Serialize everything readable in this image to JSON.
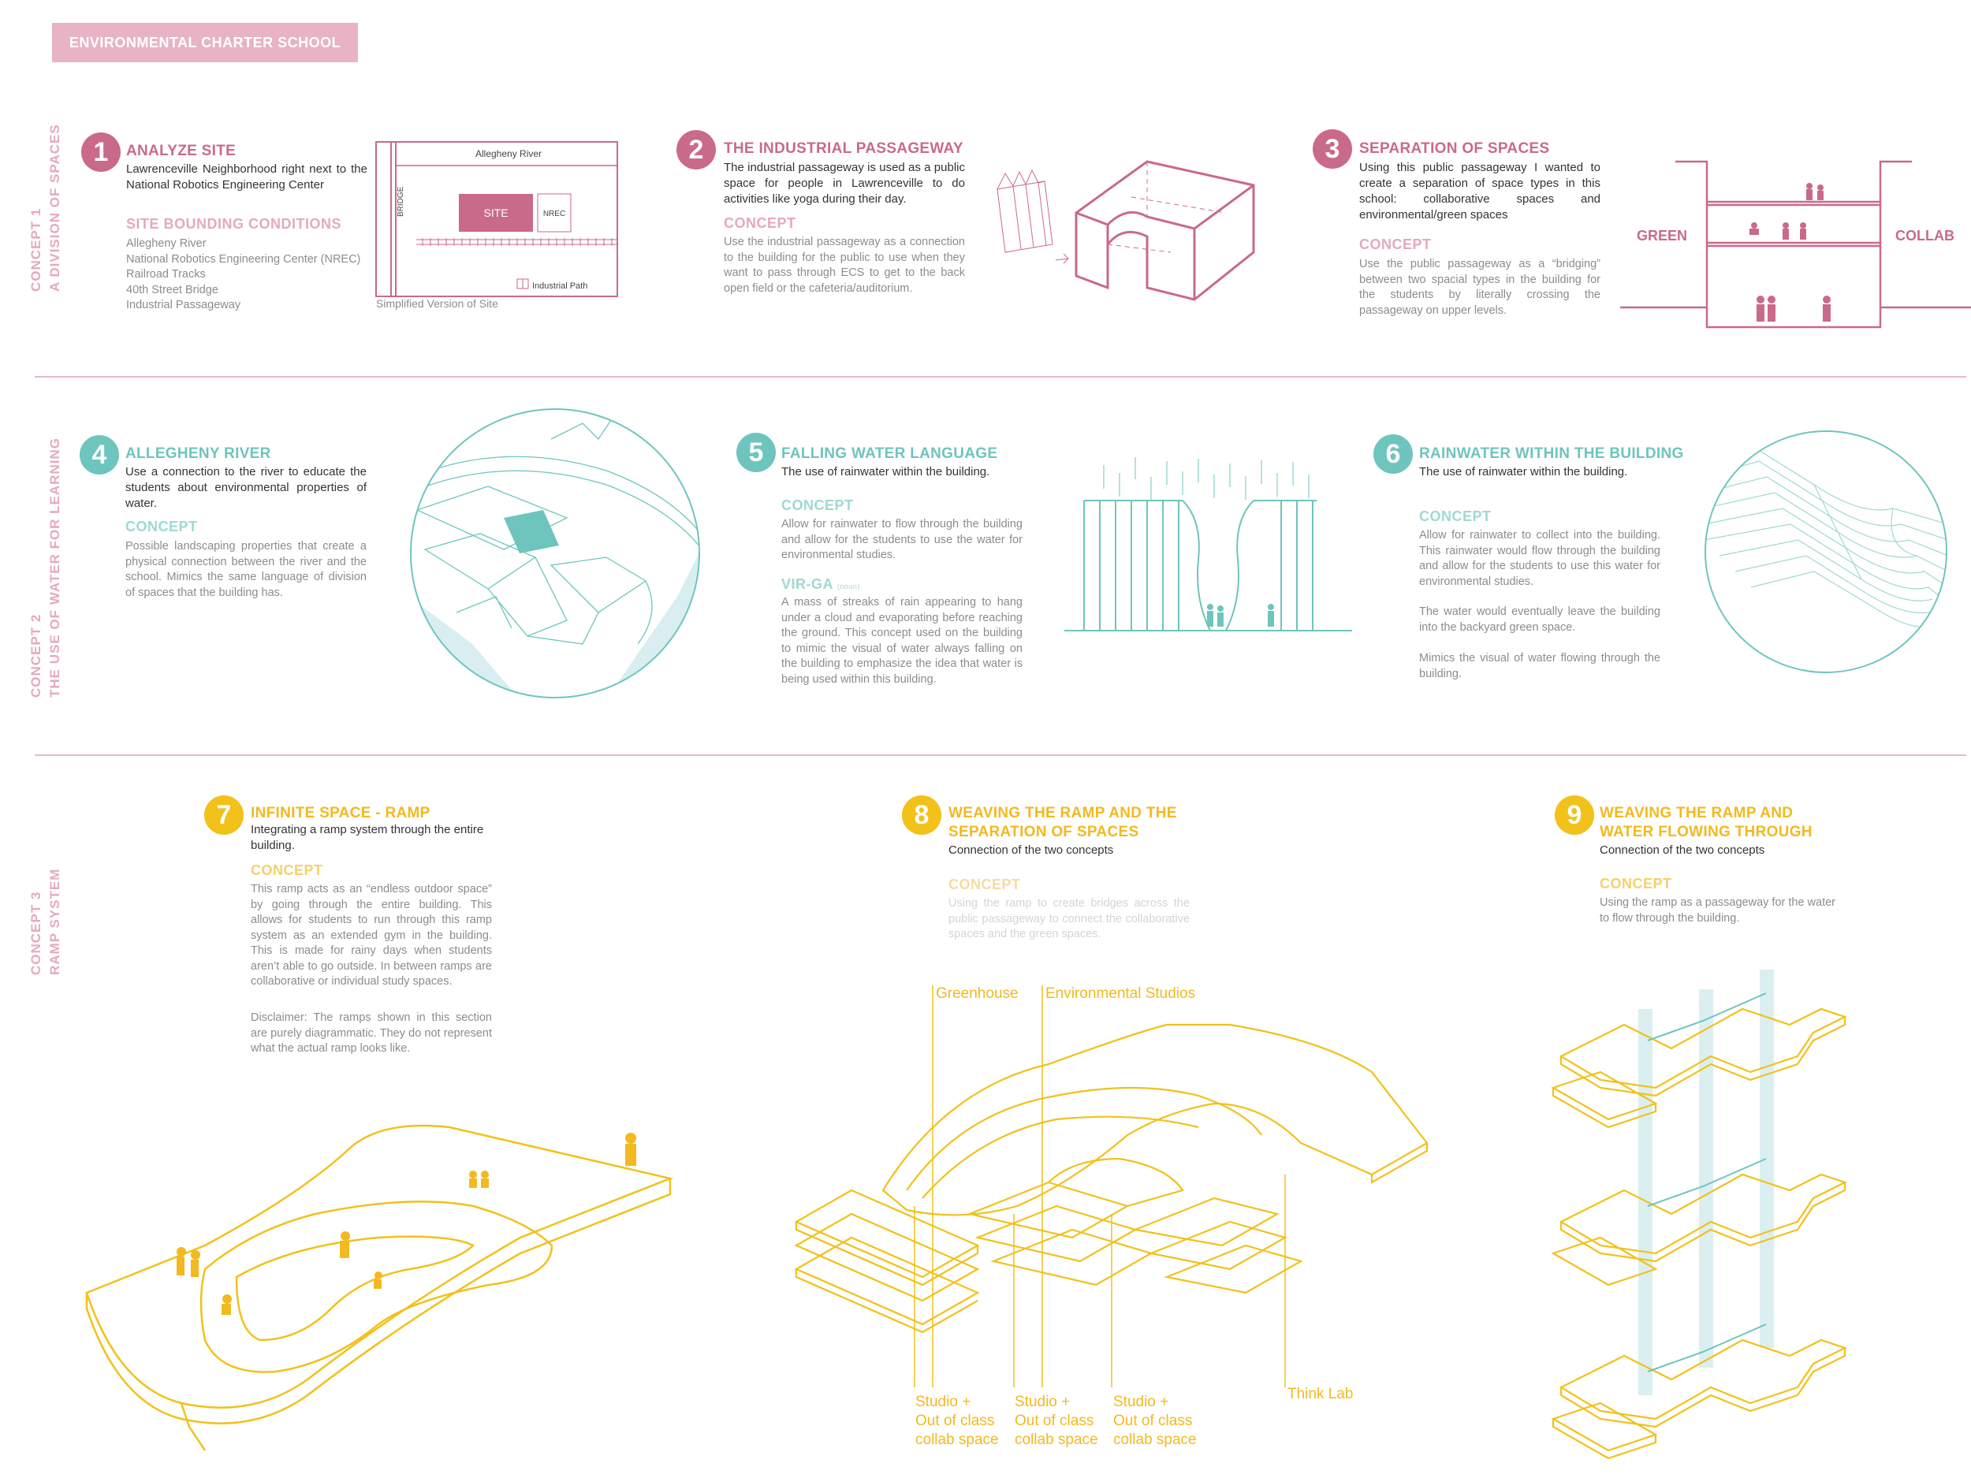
{
  "header": {
    "title": "ENVIRONMENTAL CHARTER SCHOOL"
  },
  "concepts": [
    {
      "label": "CONCEPT 1",
      "sublabel": "A DIVISION OF SPACES"
    },
    {
      "label": "CONCEPT 2",
      "sublabel": "THE USE OF WATER FOR LEARNING"
    },
    {
      "label": "CONCEPT 3",
      "sublabel": "RAMP SYSTEM"
    }
  ],
  "s1": {
    "num": "1",
    "title": "ANALYZE SITE",
    "desc": "Lawrenceville Neighborhood right next to the National Robotics Engineering Center",
    "sub": "SITE BOUNDING CONDITIONS",
    "items": [
      "Allegheny River",
      "National Robotics Engineering Center (NREC)",
      "Railroad Tracks",
      "40th Street Bridge",
      "Industrial Passageway"
    ],
    "map": {
      "river": "Allegheny River",
      "bridge": "BRIDGE",
      "site": "SITE",
      "nrec": "NREC",
      "path": "Industrial Path",
      "caption": "Simplified Version of Site"
    }
  },
  "s2": {
    "num": "2",
    "title": "THE INDUSTRIAL PASSAGEWAY",
    "desc": "The industrial passageway is used as a public space for people in Lawrenceville to do activities like yoga during their day.",
    "concept": "CONCEPT",
    "body": "Use the industrial passageway as a connection to the building for the public to use when they want to pass through ECS to get to the back open field or the cafeteria/auditorium."
  },
  "s3": {
    "num": "3",
    "title": "SEPARATION OF SPACES",
    "desc": "Using this public passageway I wanted to create a separation of space types in this school: collaborative spaces and environmental/green spaces",
    "concept": "CONCEPT",
    "body": "Use the public passageway as a “bridging” between two spacial types in the building for the students by literally crossing the passageway on upper levels.",
    "left": "GREEN",
    "right": "COLLAB"
  },
  "s4": {
    "num": "4",
    "title": "ALLEGHENY RIVER",
    "desc": "Use a connection to the river to educate the students about environmental properties of water.",
    "concept": "CONCEPT",
    "body": "Possible landscaping properties that create a physical connection between the river and the school. Mimics the same language of division of spaces that the building has."
  },
  "s5": {
    "num": "5",
    "title": "FALLING WATER LANGUAGE",
    "desc": "The use of rainwater within the building.",
    "concept": "CONCEPT",
    "body": "Allow for rainwater to flow through the building and allow for the students to use the water for environmental studies.",
    "virga": "VIR-GA",
    "virga_note": "(noun)",
    "virga_body": "A mass of streaks of rain appearing to hang under a cloud and evaporating before reaching the ground. This concept used on the building to mimic the visual of water always falling on the building to emphasize the idea that water is being used within this building."
  },
  "s6": {
    "num": "6",
    "title": "RAINWATER WITHIN THE BUILDING",
    "desc": "The use of rainwater within the building.",
    "concept": "CONCEPT",
    "body1": "Allow for rainwater to collect into the building. This rainwater would flow through the building and allow for the students to use this water for environmental studies.",
    "body2": "The water would eventually leave the building into the backyard green space.",
    "body3": "Mimics the visual of water flowing through the building."
  },
  "s7": {
    "num": "7",
    "title": "INFINITE SPACE - RAMP",
    "desc": "Integrating a ramp system through the entire building.",
    "concept": "CONCEPT",
    "body": "This ramp acts as an “endless outdoor space” by going through the entire building. This allows for students to run through this ramp system as an extended gym in the building. This is made for rainy days when students aren’t able to go outside. In between ramps are collaborative or individual study spaces.",
    "disclaimer": "Disclaimer: The ramps shown in this section are purely diagrammatic. They do not represent what the actual ramp looks like."
  },
  "s8": {
    "num": "8",
    "title": "WEAVING THE RAMP AND THE SEPARATION OF SPACES",
    "desc": "Connection of the two concepts",
    "concept": "CONCEPT",
    "body": "Using the ramp to create bridges across the public passageway to connect the collaborative spaces and the green spaces.",
    "labels": {
      "greenhouse": "Greenhouse",
      "studios": "Environmental Studios",
      "thinklab": "Think Lab",
      "studio1": "Studio +",
      "studio2": "Out of class",
      "studio3": "collab space"
    }
  },
  "s9": {
    "num": "9",
    "title": "WEAVING THE RAMP AND WATER FLOWING THROUGH",
    "desc": "Connection of the two concepts",
    "concept": "CONCEPT",
    "body": "Using the ramp as a passageway for the water to flow through the building."
  },
  "colors": {
    "pink": "#c96a8a",
    "teal": "#6ec5bd",
    "yellow": "#f2b920"
  }
}
